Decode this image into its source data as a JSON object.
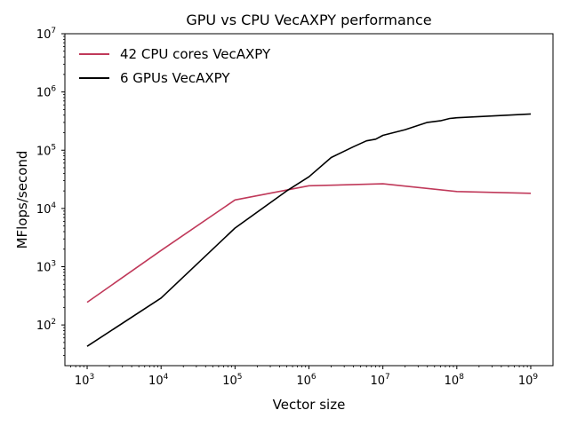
{
  "chart_data": {
    "type": "line",
    "title": "GPU vs CPU VecAXPY performance",
    "xlabel": "Vector size",
    "ylabel": "MFlops/second",
    "xscale": "log",
    "yscale": "log",
    "xlim": [
      500,
      2000000000
    ],
    "ylim": [
      20,
      10000000
    ],
    "grid": false,
    "legend_position": "top-left",
    "x_ticks": [
      {
        "value": 1000,
        "base": "10",
        "exp": "3"
      },
      {
        "value": 10000,
        "base": "10",
        "exp": "4"
      },
      {
        "value": 100000,
        "base": "10",
        "exp": "5"
      },
      {
        "value": 1000000,
        "base": "10",
        "exp": "6"
      },
      {
        "value": 10000000,
        "base": "10",
        "exp": "7"
      },
      {
        "value": 100000000,
        "base": "10",
        "exp": "8"
      },
      {
        "value": 1000000000,
        "base": "10",
        "exp": "9"
      }
    ],
    "y_ticks": [
      {
        "value": 100,
        "base": "10",
        "exp": "2"
      },
      {
        "value": 1000,
        "base": "10",
        "exp": "3"
      },
      {
        "value": 10000,
        "base": "10",
        "exp": "4"
      },
      {
        "value": 100000,
        "base": "10",
        "exp": "5"
      },
      {
        "value": 1000000,
        "base": "10",
        "exp": "6"
      },
      {
        "value": 10000000,
        "base": "10",
        "exp": "7"
      }
    ],
    "series": [
      {
        "name": "42 CPU cores VecAXPY",
        "color": "#c0395a",
        "x": [
          1000,
          10000,
          100000,
          1000000,
          10000000,
          100000000,
          1000000000
        ],
        "y": [
          245,
          1900,
          14000,
          24500,
          26500,
          19500,
          18200
        ]
      },
      {
        "name": "6 GPUs VecAXPY",
        "color": "#000000",
        "x": [
          1000,
          10000,
          100000,
          500000,
          1000000,
          2000000,
          4000000,
          6000000,
          8000000,
          10000000,
          20000000,
          40000000,
          60000000,
          80000000,
          100000000,
          1000000000
        ],
        "y": [
          43,
          290,
          4600,
          20000,
          35000,
          75000,
          115000,
          145000,
          155000,
          180000,
          225000,
          300000,
          320000,
          350000,
          360000,
          420000
        ]
      }
    ]
  }
}
